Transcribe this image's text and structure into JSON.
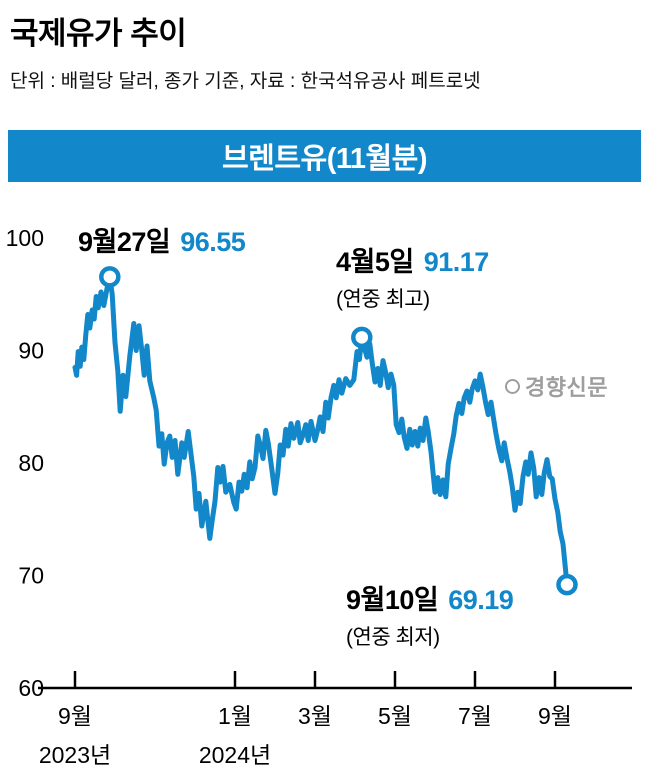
{
  "header": {
    "title": "국제유가 추이",
    "subtitle": "단위 : 배럴당 달러, 종가 기준, 자료 : 한국석유공사 페트로넷",
    "band_label": "브렌트유(11월분)"
  },
  "colors": {
    "accent": "#1287c9",
    "axis": "#000000",
    "watermark": "#9e9e9e"
  },
  "watermark_text": "경향신문",
  "annotations": [
    {
      "date": "9월27일",
      "value": "96.55",
      "note": ""
    },
    {
      "date": "4월5일",
      "value": "91.17",
      "note": "(연중 최고)"
    },
    {
      "date": "9월10일",
      "value": "69.19",
      "note": "(연중 최저)"
    }
  ],
  "chart_data": {
    "type": "line",
    "title": "브렌트유(11월분)",
    "unit": "배럴당 달러 (종가 기준)",
    "x_unit": "months since 2023-09-01",
    "ylim": [
      60,
      102
    ],
    "y_ticks": [
      100,
      90,
      80,
      70,
      60
    ],
    "x_ticks": [
      {
        "m": 0,
        "label": "9월"
      },
      {
        "m": 4,
        "label": "1월"
      },
      {
        "m": 6,
        "label": "3월"
      },
      {
        "m": 8,
        "label": "5월"
      },
      {
        "m": 10,
        "label": "7월"
      },
      {
        "m": 12,
        "label": "9월"
      }
    ],
    "year_labels": [
      {
        "m": 0,
        "label": "2023년"
      },
      {
        "m": 4,
        "label": "2024년"
      }
    ],
    "markers": [
      {
        "m": 0.87,
        "v": 96.55,
        "label": "9월27일 96.55"
      },
      {
        "m": 7.17,
        "v": 91.17,
        "label": "4월5일 91.17 (연중 최고)"
      },
      {
        "m": 12.3,
        "v": 69.19,
        "label": "9월10일 69.19 (연중 최저)"
      }
    ],
    "series": [
      {
        "name": "브렌트유(11월분)",
        "points": [
          [
            0.0,
            88.5
          ],
          [
            0.04,
            87.8
          ],
          [
            0.08,
            89.9
          ],
          [
            0.13,
            88.6
          ],
          [
            0.17,
            90.3
          ],
          [
            0.22,
            89.2
          ],
          [
            0.27,
            91.4
          ],
          [
            0.32,
            93.2
          ],
          [
            0.37,
            92.0
          ],
          [
            0.43,
            93.6
          ],
          [
            0.48,
            92.8
          ],
          [
            0.53,
            94.8
          ],
          [
            0.58,
            93.8
          ],
          [
            0.65,
            95.2
          ],
          [
            0.72,
            94.0
          ],
          [
            0.8,
            95.5
          ],
          [
            0.87,
            96.55
          ],
          [
            0.93,
            95.0
          ],
          [
            1.0,
            90.7
          ],
          [
            1.07,
            88.2
          ],
          [
            1.13,
            84.6
          ],
          [
            1.2,
            87.8
          ],
          [
            1.27,
            85.9
          ],
          [
            1.37,
            89.5
          ],
          [
            1.47,
            92.4
          ],
          [
            1.53,
            90.0
          ],
          [
            1.6,
            92.2
          ],
          [
            1.67,
            90.0
          ],
          [
            1.73,
            87.8
          ],
          [
            1.8,
            90.4
          ],
          [
            1.87,
            87.3
          ],
          [
            1.97,
            85.8
          ],
          [
            2.03,
            84.7
          ],
          [
            2.1,
            81.5
          ],
          [
            2.17,
            82.6
          ],
          [
            2.23,
            79.9
          ],
          [
            2.3,
            81.8
          ],
          [
            2.37,
            82.4
          ],
          [
            2.43,
            80.5
          ],
          [
            2.5,
            82.0
          ],
          [
            2.57,
            79.0
          ],
          [
            2.67,
            81.8
          ],
          [
            2.73,
            80.5
          ],
          [
            2.83,
            82.8
          ],
          [
            2.9,
            80.8
          ],
          [
            2.97,
            78.8
          ],
          [
            3.03,
            75.9
          ],
          [
            3.1,
            77.3
          ],
          [
            3.17,
            74.4
          ],
          [
            3.27,
            76.6
          ],
          [
            3.37,
            73.3
          ],
          [
            3.43,
            74.9
          ],
          [
            3.5,
            76.6
          ],
          [
            3.57,
            79.6
          ],
          [
            3.63,
            78.3
          ],
          [
            3.7,
            79.7
          ],
          [
            3.77,
            77.4
          ],
          [
            3.87,
            78.1
          ],
          [
            3.97,
            76.5
          ],
          [
            4.03,
            75.9
          ],
          [
            4.1,
            78.3
          ],
          [
            4.17,
            77.5
          ],
          [
            4.23,
            79.0
          ],
          [
            4.3,
            77.8
          ],
          [
            4.37,
            80.1
          ],
          [
            4.43,
            78.6
          ],
          [
            4.5,
            79.6
          ],
          [
            4.57,
            82.4
          ],
          [
            4.63,
            81.6
          ],
          [
            4.7,
            80.4
          ],
          [
            4.77,
            82.9
          ],
          [
            4.83,
            81.8
          ],
          [
            4.9,
            80.0
          ],
          [
            5.0,
            77.3
          ],
          [
            5.07,
            79.1
          ],
          [
            5.13,
            81.6
          ],
          [
            5.2,
            80.7
          ],
          [
            5.27,
            83.0
          ],
          [
            5.33,
            81.5
          ],
          [
            5.4,
            83.5
          ],
          [
            5.47,
            82.2
          ],
          [
            5.57,
            83.6
          ],
          [
            5.63,
            81.8
          ],
          [
            5.7,
            82.5
          ],
          [
            5.77,
            83.4
          ],
          [
            5.83,
            82.0
          ],
          [
            5.9,
            83.7
          ],
          [
            6.0,
            82.0
          ],
          [
            6.07,
            83.0
          ],
          [
            6.13,
            84.1
          ],
          [
            6.2,
            82.8
          ],
          [
            6.27,
            85.4
          ],
          [
            6.33,
            84.0
          ],
          [
            6.4,
            85.8
          ],
          [
            6.47,
            86.9
          ],
          [
            6.53,
            85.8
          ],
          [
            6.6,
            87.4
          ],
          [
            6.67,
            86.2
          ],
          [
            6.77,
            87.5
          ],
          [
            6.87,
            86.9
          ],
          [
            6.97,
            87.4
          ],
          [
            7.05,
            89.9
          ],
          [
            7.11,
            89.2
          ],
          [
            7.17,
            91.17
          ],
          [
            7.23,
            90.3
          ],
          [
            7.3,
            89.4
          ],
          [
            7.37,
            90.6
          ],
          [
            7.43,
            88.9
          ],
          [
            7.5,
            87.2
          ],
          [
            7.57,
            88.4
          ],
          [
            7.63,
            86.9
          ],
          [
            7.7,
            89.1
          ],
          [
            7.77,
            88.0
          ],
          [
            7.83,
            86.7
          ],
          [
            7.9,
            87.9
          ],
          [
            7.97,
            86.9
          ],
          [
            8.03,
            83.4
          ],
          [
            8.1,
            82.7
          ],
          [
            8.17,
            83.9
          ],
          [
            8.23,
            82.3
          ],
          [
            8.3,
            81.3
          ],
          [
            8.37,
            83.0
          ],
          [
            8.43,
            81.6
          ],
          [
            8.5,
            82.8
          ],
          [
            8.57,
            81.5
          ],
          [
            8.63,
            83.1
          ],
          [
            8.7,
            82.0
          ],
          [
            8.77,
            84.0
          ],
          [
            8.83,
            82.8
          ],
          [
            8.9,
            81.0
          ],
          [
            9.0,
            77.4
          ],
          [
            9.07,
            78.7
          ],
          [
            9.13,
            77.2
          ],
          [
            9.2,
            78.5
          ],
          [
            9.27,
            77.0
          ],
          [
            9.33,
            79.9
          ],
          [
            9.4,
            81.3
          ],
          [
            9.47,
            82.6
          ],
          [
            9.53,
            84.2
          ],
          [
            9.6,
            85.3
          ],
          [
            9.67,
            84.4
          ],
          [
            9.73,
            85.8
          ],
          [
            9.8,
            86.4
          ],
          [
            9.87,
            85.4
          ],
          [
            9.93,
            86.6
          ],
          [
            10.0,
            87.3
          ],
          [
            10.07,
            86.5
          ],
          [
            10.13,
            87.9
          ],
          [
            10.2,
            86.7
          ],
          [
            10.27,
            85.3
          ],
          [
            10.33,
            84.3
          ],
          [
            10.4,
            85.4
          ],
          [
            10.47,
            83.8
          ],
          [
            10.53,
            82.5
          ],
          [
            10.6,
            81.2
          ],
          [
            10.67,
            80.2
          ],
          [
            10.73,
            81.8
          ],
          [
            10.8,
            80.4
          ],
          [
            10.87,
            79.2
          ],
          [
            10.93,
            77.9
          ],
          [
            11.0,
            75.8
          ],
          [
            11.07,
            77.4
          ],
          [
            11.13,
            76.4
          ],
          [
            11.2,
            78.8
          ],
          [
            11.27,
            80.1
          ],
          [
            11.33,
            79.0
          ],
          [
            11.4,
            80.9
          ],
          [
            11.47,
            79.5
          ],
          [
            11.53,
            77.0
          ],
          [
            11.6,
            78.7
          ],
          [
            11.67,
            77.2
          ],
          [
            11.73,
            79.1
          ],
          [
            11.8,
            80.3
          ],
          [
            11.87,
            78.8
          ],
          [
            11.93,
            78.6
          ],
          [
            12.0,
            76.8
          ],
          [
            12.07,
            75.6
          ],
          [
            12.13,
            73.9
          ],
          [
            12.2,
            72.8
          ],
          [
            12.25,
            71.0
          ],
          [
            12.3,
            69.19
          ]
        ]
      }
    ]
  }
}
